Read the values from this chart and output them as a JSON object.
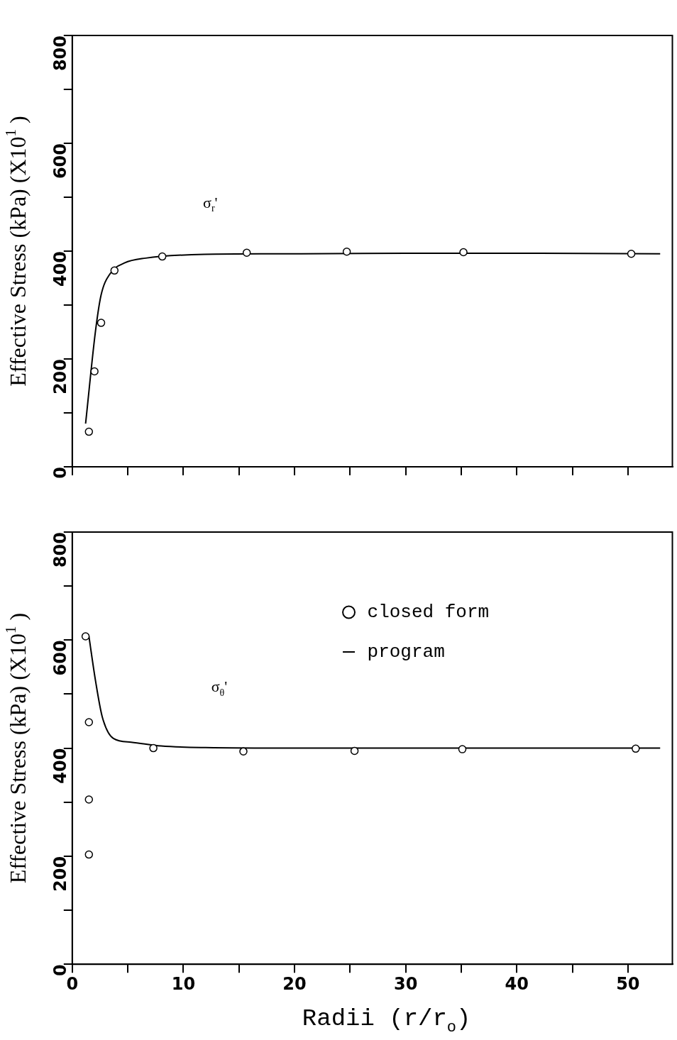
{
  "chart_data": [
    {
      "type": "scatter",
      "ylabel": "Effective Stress (kPa) (X10$^{1}$ )",
      "xlim": [
        0,
        54
      ],
      "xticks": [
        0,
        {
          "value": 5,
          "label": null
        },
        10,
        {
          "value": 15,
          "label": null
        },
        20,
        {
          "value": 25,
          "label": null
        },
        30,
        {
          "value": 35,
          "label": null
        },
        40,
        {
          "value": 45,
          "label": null
        },
        50
      ],
      "ylim": [
        0,
        800
      ],
      "yticks": [
        0,
        {
          "value": 100,
          "label": null
        },
        200,
        {
          "value": 300,
          "label": null
        },
        400,
        {
          "value": 500,
          "label": null
        },
        600,
        {
          "value": 700,
          "label": null
        },
        800
      ],
      "tick_labels": "y",
      "grid": false,
      "legend": false,
      "annotations": [
        "σ$_{r}$'"
      ],
      "series": [
        {
          "type": "scatter",
          "color": "#000000",
          "marker": "circle",
          "x": [
            1.5,
            2.0,
            2.6,
            3.8,
            8.1,
            15.7,
            24.7,
            35.2,
            50.3
          ],
          "values": [
            65,
            177,
            267,
            364,
            390,
            397,
            399,
            398,
            395
          ]
        },
        {
          "type": "line",
          "color": "#000000",
          "marker": "none",
          "x": [
            1.2,
            2.1,
            2.6,
            3.4,
            4.7,
            6.6,
            11.9,
            18.4,
            30,
            42,
            52.9
          ],
          "values": [
            80,
            253,
            319,
            358,
            378,
            387,
            394,
            395,
            396,
            396,
            395
          ]
        }
      ]
    },
    {
      "type": "scatter",
      "ylabel": "Effective Stress (kPa) (X10$^{1}$ )",
      "xlabel": "Radii (r/r$_{o}$)",
      "xlim": [
        0,
        54
      ],
      "xticks": [
        0,
        {
          "value": 5,
          "label": null
        },
        10,
        {
          "value": 15,
          "label": null
        },
        20,
        {
          "value": 25,
          "label": null
        },
        30,
        {
          "value": 35,
          "label": null
        },
        40,
        {
          "value": 45,
          "label": null
        },
        50
      ],
      "ylim": [
        0,
        800
      ],
      "yticks": [
        0,
        {
          "value": 100,
          "label": null
        },
        200,
        {
          "value": 300,
          "label": null
        },
        400,
        {
          "value": 500,
          "label": null
        },
        600,
        {
          "value": 700,
          "label": null
        },
        800
      ],
      "grid": false,
      "legend": "top right",
      "annotations": [
        "σ$_{θ}$'"
      ],
      "series": [
        {
          "type": "scatter",
          "name": "closed form",
          "color": "#000000",
          "marker": "circle",
          "x": [
            1.2,
            1.5,
            1.5,
            1.5,
            7.3,
            15.4,
            25.4,
            35.1,
            50.7
          ],
          "values": [
            607,
            448,
            305,
            203,
            400,
            394,
            395,
            398,
            399
          ]
        },
        {
          "type": "line",
          "name": "program",
          "color": "#000000",
          "marker": "none",
          "x": [
            1.5,
            2.1,
            2.7,
            3.7,
            5.3,
            8,
            12,
            20,
            30,
            40,
            52.9
          ],
          "values": [
            607,
            524,
            458,
            418,
            411,
            404,
            401,
            400,
            400,
            400,
            400
          ]
        }
      ]
    }
  ]
}
